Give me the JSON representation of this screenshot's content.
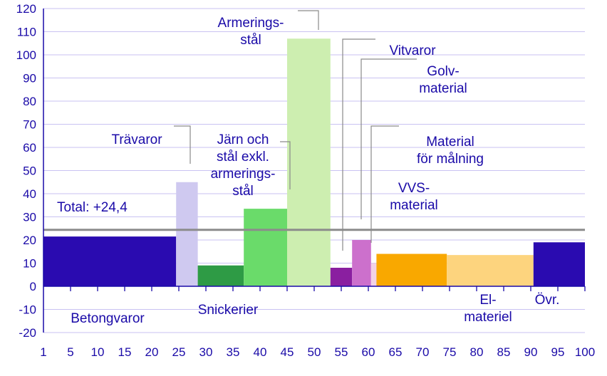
{
  "chart_data": {
    "type": "bar",
    "title": "",
    "xlabel": "",
    "ylabel": "",
    "xlim": [
      0,
      100
    ],
    "ylim": [
      -20,
      120
    ],
    "yticks": [
      -20,
      -10,
      0,
      10,
      20,
      30,
      40,
      50,
      60,
      70,
      80,
      90,
      100,
      110,
      120
    ],
    "xticks": [
      1,
      5,
      10,
      15,
      20,
      25,
      30,
      35,
      40,
      45,
      50,
      55,
      60,
      65,
      70,
      75,
      80,
      85,
      90,
      95,
      100
    ],
    "grid": "horizontal",
    "total": {
      "label": "Total: +24,4",
      "value": 24.4
    },
    "categories": [
      {
        "name": "Betongvaror",
        "lines": [
          "Betongvaror"
        ],
        "start": 0,
        "end": 24.5,
        "value": 21.5,
        "color": "#2a0bb0"
      },
      {
        "name": "Trävaror",
        "lines": [
          "Trävaror"
        ],
        "start": 24.5,
        "end": 28.5,
        "value": 45,
        "color": "#cfc9f0"
      },
      {
        "name": "Snickerier",
        "lines": [
          "Snickerier"
        ],
        "start": 28.5,
        "end": 37,
        "value": 9,
        "color": "#2e9b45"
      },
      {
        "name": "Järn och stål exkl. armeringsstål",
        "lines": [
          "Järn och",
          "stål exkl.",
          "armerings-",
          "stål"
        ],
        "start": 37,
        "end": 45,
        "value": 33.5,
        "color": "#6adb6a"
      },
      {
        "name": "Armeringsstål",
        "lines": [
          "Armerings-",
          "stål"
        ],
        "start": 45,
        "end": 53,
        "value": 107,
        "color": "#cdeeb0"
      },
      {
        "name": "Vitvaror",
        "lines": [
          "Vitvaror"
        ],
        "start": 53,
        "end": 57,
        "value": 8,
        "color": "#8a1fa0"
      },
      {
        "name": "Golvmaterial",
        "lines": [
          "Golv-",
          "material"
        ],
        "start": 57,
        "end": 60.5,
        "value": 20,
        "color": "#cc70cc"
      },
      {
        "name": "Material för målning",
        "lines": [
          "Material",
          "för målning"
        ],
        "start": 60.5,
        "end": 61.5,
        "value": 10,
        "color": "#f2d2e6"
      },
      {
        "name": "VVS-material",
        "lines": [
          "VVS-",
          "material"
        ],
        "start": 61.5,
        "end": 74.5,
        "value": 14,
        "color": "#f9a800"
      },
      {
        "name": "El-material",
        "lines": [
          "El-",
          "materiel"
        ],
        "start": 74.5,
        "end": 90.5,
        "value": 13.5,
        "color": "#fdd47e"
      },
      {
        "name": "Övr.",
        "lines": [
          "Övr."
        ],
        "start": 90.5,
        "end": 100,
        "value": 19,
        "color": "#2a0bb0"
      }
    ]
  }
}
